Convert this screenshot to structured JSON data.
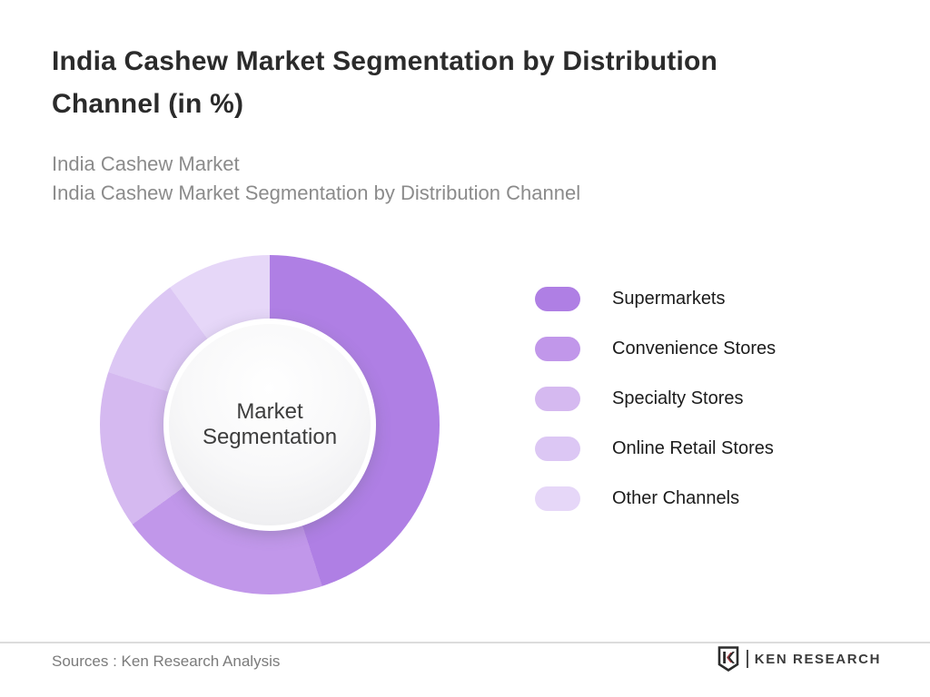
{
  "header": {
    "title_line1": "India Cashew Market Segmentation by Distribution",
    "title_line2": "Channel (in %)",
    "subtitle_line1": "India Cashew Market",
    "subtitle_line2": "India Cashew Market Segmentation by Distribution Channel"
  },
  "chart_data": {
    "type": "pie",
    "donut": true,
    "title": "India Cashew Market Segmentation by Distribution Channel (in %)",
    "center_label": "Market Segmentation",
    "categories": [
      "Supermarkets",
      "Convenience Stores",
      "Specialty Stores",
      "Online Retail Stores",
      "Other Channels"
    ],
    "values": [
      45,
      20,
      15,
      10,
      10
    ],
    "unit": "%",
    "colors": [
      "#af7fe4",
      "#c197ea",
      "#d5b9f0",
      "#dcc7f4",
      "#e6d7f8"
    ],
    "start_angle_deg": 0,
    "legend_position": "right",
    "grid": false
  },
  "footer": {
    "source": "Sources : Ken Research Analysis",
    "logo_text": "KEN RESEARCH"
  },
  "palette": {
    "title_text": "#2b2b2b",
    "subtitle_text": "#8b8b8b",
    "legend_text": "#1b1b1b",
    "footer_text": "#7b7b7b",
    "logo_accent_red": "#a23b42",
    "logo_dark": "#2c2c2c",
    "divider": "#dcdcdc"
  }
}
